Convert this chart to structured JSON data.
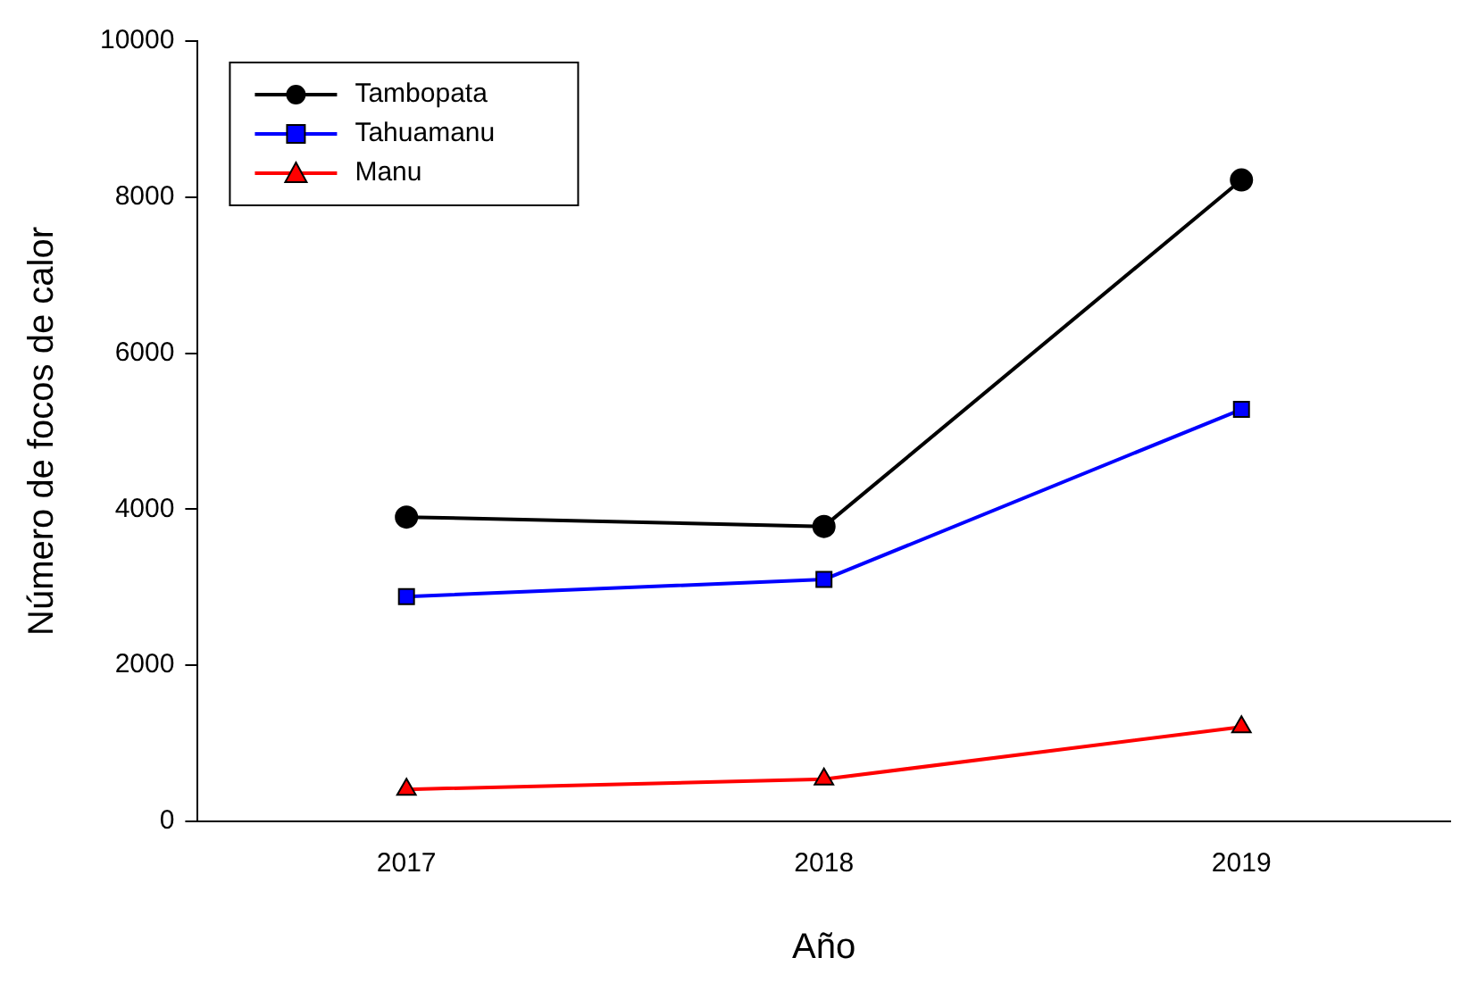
{
  "chart_data": {
    "type": "line",
    "xlabel": "Año",
    "ylabel": "Número de focos de calor",
    "x": [
      2017,
      2018,
      2019
    ],
    "xlim": [
      2016.5,
      2019.5
    ],
    "xticks": [
      2017,
      2018,
      2019
    ],
    "ylim": [
      0,
      10000
    ],
    "yticks": [
      0,
      2000,
      4000,
      6000,
      8000,
      10000
    ],
    "grid": false,
    "legend": "top left",
    "line_style": "solid",
    "series": [
      {
        "name": "Tambopata",
        "color": "#000000",
        "marker": "circle",
        "values": [
          3900,
          3780,
          8220
        ]
      },
      {
        "name": "Tahuamanu",
        "color": "#0000ff",
        "marker": "square",
        "values": [
          2880,
          3100,
          5280
        ]
      },
      {
        "name": "Manu",
        "color": "#ff0000",
        "marker": "triangle",
        "values": [
          410,
          540,
          1210
        ]
      }
    ]
  }
}
